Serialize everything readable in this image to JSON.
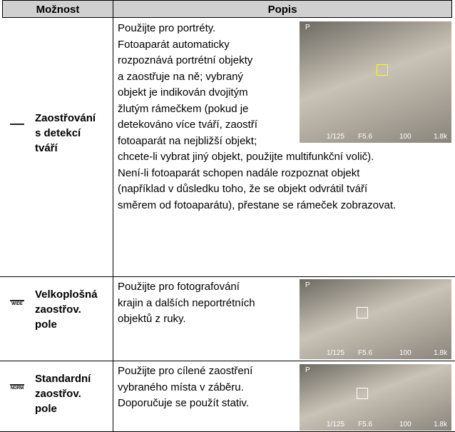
{
  "table": {
    "headers": [
      "Možnost",
      "Popis"
    ],
    "rows": [
      {
        "icon_text": "",
        "option": [
          "Zaostřování",
          "s detekcí",
          "tváří"
        ],
        "description": [
          "Použijte pro portréty.",
          "Fotoaparát automaticky",
          "rozpoznává portrétní objekty",
          "a zaostřuje na ně; vybraný",
          "objekt je indikován dvojitým",
          "žlutým rámečkem (pokud je",
          "detekováno více tváří, zaostří",
          "fotoaparát na nejbližší objekt;",
          "chcete-li vybrat jiný objekt, použijte multifunkční volič).",
          "Není-li fotoaparát schopen nadále rozpoznat objekt",
          "(například v důsledku toho, že se objekt odvrátil tváří",
          "směrem od fotoaparátu), přestane se rámeček zobrazovat."
        ],
        "screen": {
          "mode": "P",
          "shutter": "1/125",
          "aperture": "F5.6",
          "iso": "100",
          "remaining": "1.8k"
        }
      },
      {
        "icon_text": "WIDE",
        "option": [
          "Velkoplošná",
          "zaostřov.",
          "pole"
        ],
        "description": [
          "Použijte pro fotografování",
          "krajin a dalších neportrétních",
          "objektů z ruky."
        ],
        "screen": {
          "mode": "P",
          "shutter": "1/125",
          "aperture": "F5.6",
          "iso": "100",
          "remaining": "1.8k"
        }
      },
      {
        "icon_text": "NORM",
        "option": [
          "Standardní",
          "zaostřov.",
          "pole"
        ],
        "description": [
          "Použijte pro cílené zaostření",
          "vybraného místa v záběru.",
          "Doporučuje se použít stativ."
        ],
        "screen": {
          "mode": "P",
          "shutter": "1/125",
          "aperture": "F5.6",
          "iso": "100",
          "remaining": "1.8k"
        }
      }
    ]
  }
}
